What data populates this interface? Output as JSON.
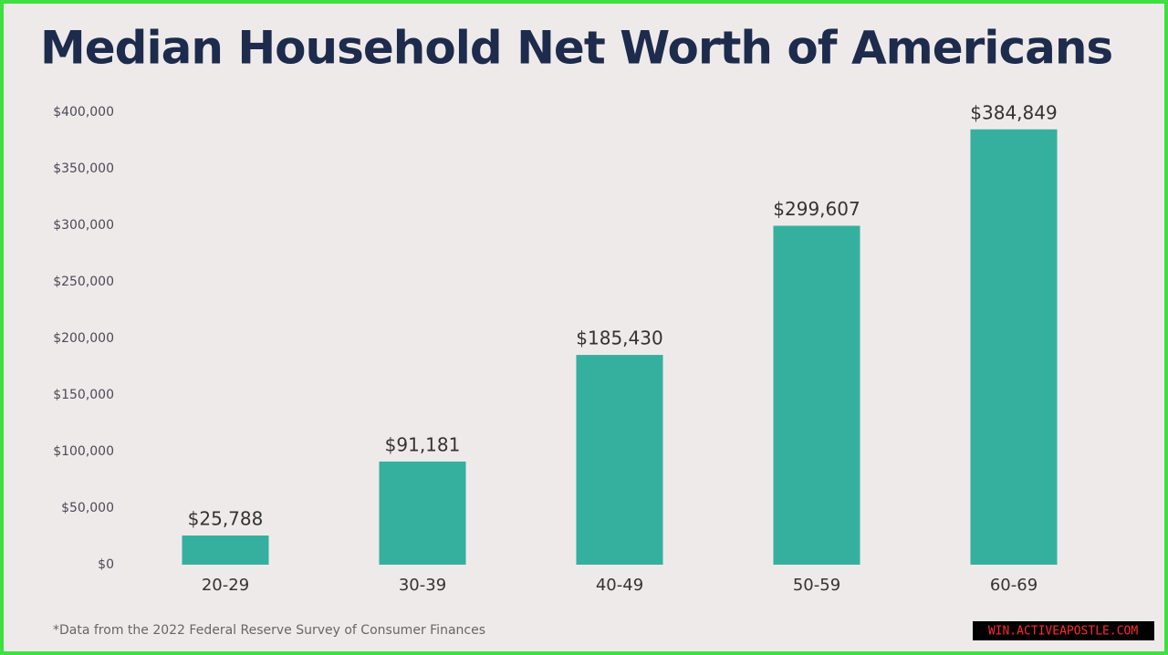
{
  "chart_data": {
    "type": "bar",
    "title": "Median Household Net Worth of Americans",
    "categories": [
      "20-29",
      "30-39",
      "40-49",
      "50-59",
      "60-69"
    ],
    "values": [
      25788,
      91181,
      185430,
      299607,
      384849
    ],
    "value_labels": [
      "$25,788",
      "$91,181",
      "$185,430",
      "$299,607",
      "$384,849"
    ],
    "color": "#35b09f",
    "ylim": [
      0,
      400000
    ],
    "yticks": [
      {
        "value": 0,
        "label": "$0"
      },
      {
        "value": 50000,
        "label": "$50,000"
      },
      {
        "value": 100000,
        "label": "$100,000"
      },
      {
        "value": 150000,
        "label": "$150,000"
      },
      {
        "value": 200000,
        "label": "$200,000"
      },
      {
        "value": 250000,
        "label": "$250,000"
      },
      {
        "value": 300000,
        "label": "$300,000"
      },
      {
        "value": 350000,
        "label": "$350,000"
      },
      {
        "value": 400000,
        "label": "$400,000"
      }
    ],
    "grid": false,
    "footnote": "*Data from the 2022 Federal Reserve Survey of Consumer Finances"
  },
  "watermark": "WIN.ACTIVEAPOSTLE.COM"
}
